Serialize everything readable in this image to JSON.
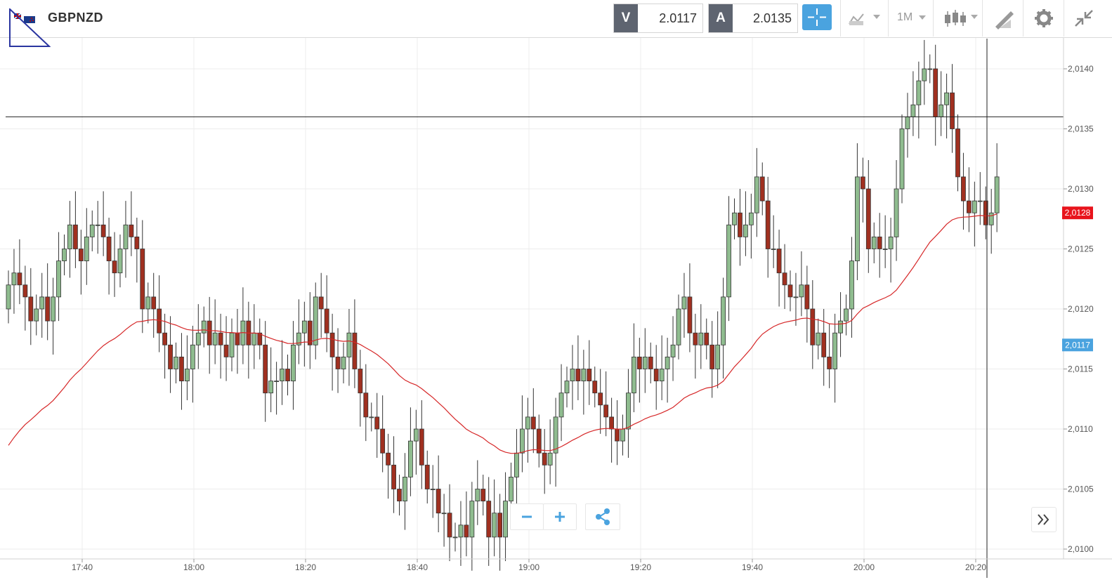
{
  "header": {
    "symbol": "GBPNZD",
    "bid_tag": "V",
    "bid_value": "2.0117",
    "ask_tag": "A",
    "ask_value": "2.0135",
    "timeframe": "1M"
  },
  "colors": {
    "bull": "#8fbc8f",
    "bear": "#a03020",
    "ma": "#d62728",
    "price_badge": "#e8141c",
    "bid_badge": "#4aa3df",
    "accent": "#4aa3df"
  },
  "icons": [
    "flag-icon",
    "crosshair-icon",
    "chart-type-icon",
    "candles-icon",
    "draw-icon",
    "gear-icon",
    "collapse-icon",
    "zoom-out-icon",
    "zoom-in-icon",
    "share-icon",
    "expand-icon"
  ],
  "chart_data": {
    "type": "candlestick",
    "title": "GBPNZD",
    "interval": "1M",
    "x_ticks": [
      "17:40",
      "18:00",
      "18:20",
      "18:40",
      "19:00",
      "19:20",
      "19:40",
      "20:00",
      "20:20"
    ],
    "y_ticks": [
      "2,0100",
      "2,0105",
      "2,0110",
      "2,0115",
      "2,0120",
      "2,0125",
      "2,0130",
      "2,0135",
      "2,0140"
    ],
    "ylim": [
      2.01,
      2.0142
    ],
    "current_price_label": "2,0128",
    "current_price": 2.0128,
    "bid_line_label": "2,0117",
    "bid_line": 2.0117,
    "horizontal_line": 2.0136,
    "crosshair_time": "20:22",
    "candles_close": [
      2.0122,
      2.0123,
      2.0122,
      2.0121,
      2.0119,
      2.012,
      2.0121,
      2.0119,
      2.0121,
      2.0124,
      2.0125,
      2.0127,
      2.0125,
      2.0124,
      2.0126,
      2.0127,
      2.0127,
      2.0126,
      2.0124,
      2.0123,
      2.0125,
      2.0127,
      2.0126,
      2.0125,
      2.012,
      2.0121,
      2.012,
      2.0118,
      2.0117,
      2.0115,
      2.0116,
      2.0114,
      2.0115,
      2.0117,
      2.0118,
      2.0119,
      2.0117,
      2.0118,
      2.0117,
      2.0116,
      2.0118,
      2.0117,
      2.0119,
      2.0117,
      2.0118,
      2.0117,
      2.0113,
      2.0114,
      2.0114,
      2.0115,
      2.0114,
      2.0117,
      2.0118,
      2.0119,
      2.0117,
      2.0121,
      2.012,
      2.0118,
      2.0116,
      2.0115,
      2.0116,
      2.0118,
      2.0115,
      2.0113,
      2.0111,
      2.0111,
      2.011,
      2.0108,
      2.0107,
      2.0105,
      2.0104,
      2.0106,
      2.0109,
      2.011,
      2.0107,
      2.0105,
      2.0105,
      2.0103,
      2.0103,
      2.0101,
      2.0101,
      2.0102,
      2.0101,
      2.0104,
      2.0105,
      2.0104,
      2.0101,
      2.0103,
      2.0101,
      2.0104,
      2.0106,
      2.0108,
      2.011,
      2.0111,
      2.011,
      2.0108,
      2.0107,
      2.0108,
      2.0111,
      2.0113,
      2.0114,
      2.0115,
      2.0114,
      2.0115,
      2.0114,
      2.0113,
      2.0112,
      2.0111,
      2.011,
      2.0109,
      2.011,
      2.0113,
      2.0116,
      2.0115,
      2.0116,
      2.0115,
      2.0114,
      2.0115,
      2.0116,
      2.0117,
      2.012,
      2.0121,
      2.0118,
      2.0117,
      2.0118,
      2.0117,
      2.0115,
      2.0117,
      2.0121,
      2.0127,
      2.0128,
      2.0126,
      2.0127,
      2.0128,
      2.0131,
      2.0129,
      2.0125,
      2.0125,
      2.0123,
      2.0122,
      2.0121,
      2.0121,
      2.0122,
      2.012,
      2.0117,
      2.0118,
      2.0116,
      2.0115,
      2.0118,
      2.0119,
      2.012,
      2.0124,
      2.0131,
      2.013,
      2.0125,
      2.0126,
      2.0125,
      2.0125,
      2.0126,
      2.013,
      2.0135,
      2.0136,
      2.0137,
      2.0139,
      2.014,
      2.014,
      2.0136,
      2.0137,
      2.0138,
      2.0135,
      2.0131,
      2.0129,
      2.0128,
      2.0129,
      2.0129,
      2.0127,
      2.0128,
      2.0131
    ]
  }
}
